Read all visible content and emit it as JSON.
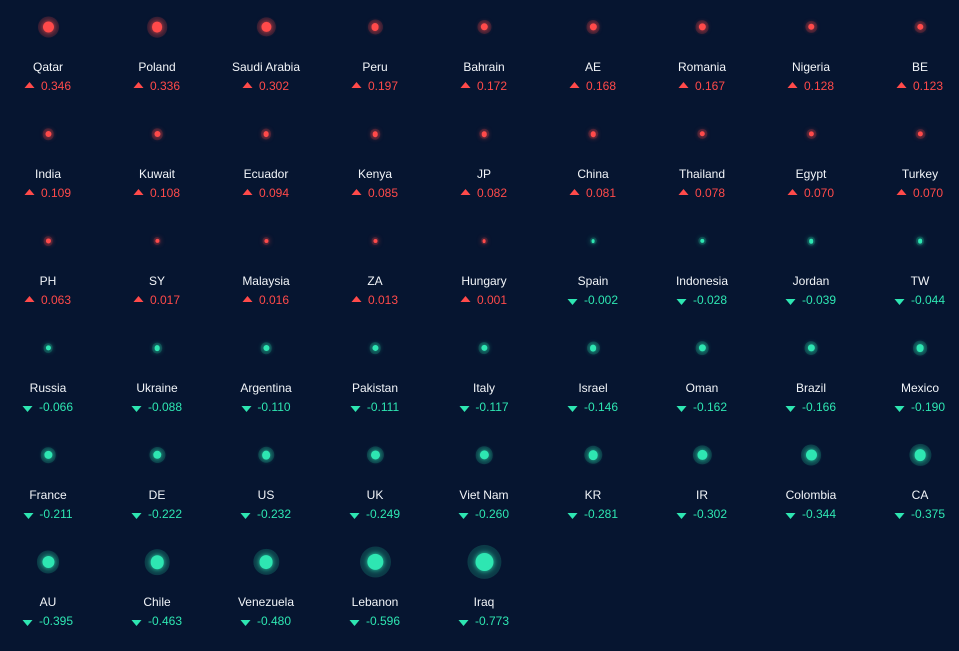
{
  "colors": {
    "background": "#061530",
    "positive": "#ff4a4a",
    "negative": "#2ee6b2",
    "label": "#f2f5f9"
  },
  "items": [
    {
      "name": "Qatar",
      "value": "0.346",
      "direction": "up"
    },
    {
      "name": "Poland",
      "value": "0.336",
      "direction": "up"
    },
    {
      "name": "Saudi Arabia",
      "value": "0.302",
      "direction": "up"
    },
    {
      "name": "Peru",
      "value": "0.197",
      "direction": "up"
    },
    {
      "name": "Bahrain",
      "value": "0.172",
      "direction": "up"
    },
    {
      "name": "AE",
      "value": "0.168",
      "direction": "up"
    },
    {
      "name": "Romania",
      "value": "0.167",
      "direction": "up"
    },
    {
      "name": "Nigeria",
      "value": "0.128",
      "direction": "up"
    },
    {
      "name": "BE",
      "value": "0.123",
      "direction": "up"
    },
    {
      "name": "India",
      "value": "0.109",
      "direction": "up"
    },
    {
      "name": "Kuwait",
      "value": "0.108",
      "direction": "up"
    },
    {
      "name": "Ecuador",
      "value": "0.094",
      "direction": "up"
    },
    {
      "name": "Kenya",
      "value": "0.085",
      "direction": "up"
    },
    {
      "name": "JP",
      "value": "0.082",
      "direction": "up"
    },
    {
      "name": "China",
      "value": "0.081",
      "direction": "up"
    },
    {
      "name": "Thailand",
      "value": "0.078",
      "direction": "up"
    },
    {
      "name": "Egypt",
      "value": "0.070",
      "direction": "up"
    },
    {
      "name": "Turkey",
      "value": "0.070",
      "direction": "up"
    },
    {
      "name": "PH",
      "value": "0.063",
      "direction": "up"
    },
    {
      "name": "SY",
      "value": "0.017",
      "direction": "up"
    },
    {
      "name": "Malaysia",
      "value": "0.016",
      "direction": "up"
    },
    {
      "name": "ZA",
      "value": "0.013",
      "direction": "up"
    },
    {
      "name": "Hungary",
      "value": "0.001",
      "direction": "up"
    },
    {
      "name": "Spain",
      "value": "-0.002",
      "direction": "down"
    },
    {
      "name": "Indonesia",
      "value": "-0.028",
      "direction": "down"
    },
    {
      "name": "Jordan",
      "value": "-0.039",
      "direction": "down"
    },
    {
      "name": "TW",
      "value": "-0.044",
      "direction": "down"
    },
    {
      "name": "Russia",
      "value": "-0.066",
      "direction": "down"
    },
    {
      "name": "Ukraine",
      "value": "-0.088",
      "direction": "down"
    },
    {
      "name": "Argentina",
      "value": "-0.110",
      "direction": "down"
    },
    {
      "name": "Pakistan",
      "value": "-0.111",
      "direction": "down"
    },
    {
      "name": "Italy",
      "value": "-0.117",
      "direction": "down"
    },
    {
      "name": "Israel",
      "value": "-0.146",
      "direction": "down"
    },
    {
      "name": "Oman",
      "value": "-0.162",
      "direction": "down"
    },
    {
      "name": "Brazil",
      "value": "-0.166",
      "direction": "down"
    },
    {
      "name": "Mexico",
      "value": "-0.190",
      "direction": "down"
    },
    {
      "name": "France",
      "value": "-0.211",
      "direction": "down"
    },
    {
      "name": "DE",
      "value": "-0.222",
      "direction": "down"
    },
    {
      "name": "US",
      "value": "-0.232",
      "direction": "down"
    },
    {
      "name": "UK",
      "value": "-0.249",
      "direction": "down"
    },
    {
      "name": "Viet Nam",
      "value": "-0.260",
      "direction": "down"
    },
    {
      "name": "KR",
      "value": "-0.281",
      "direction": "down"
    },
    {
      "name": "IR",
      "value": "-0.302",
      "direction": "down"
    },
    {
      "name": "Colombia",
      "value": "-0.344",
      "direction": "down"
    },
    {
      "name": "CA",
      "value": "-0.375",
      "direction": "down"
    },
    {
      "name": "AU",
      "value": "-0.395",
      "direction": "down"
    },
    {
      "name": "Chile",
      "value": "-0.463",
      "direction": "down"
    },
    {
      "name": "Venezuela",
      "value": "-0.480",
      "direction": "down"
    },
    {
      "name": "Lebanon",
      "value": "-0.596",
      "direction": "down"
    },
    {
      "name": "Iraq",
      "value": "-0.773",
      "direction": "down"
    }
  ]
}
